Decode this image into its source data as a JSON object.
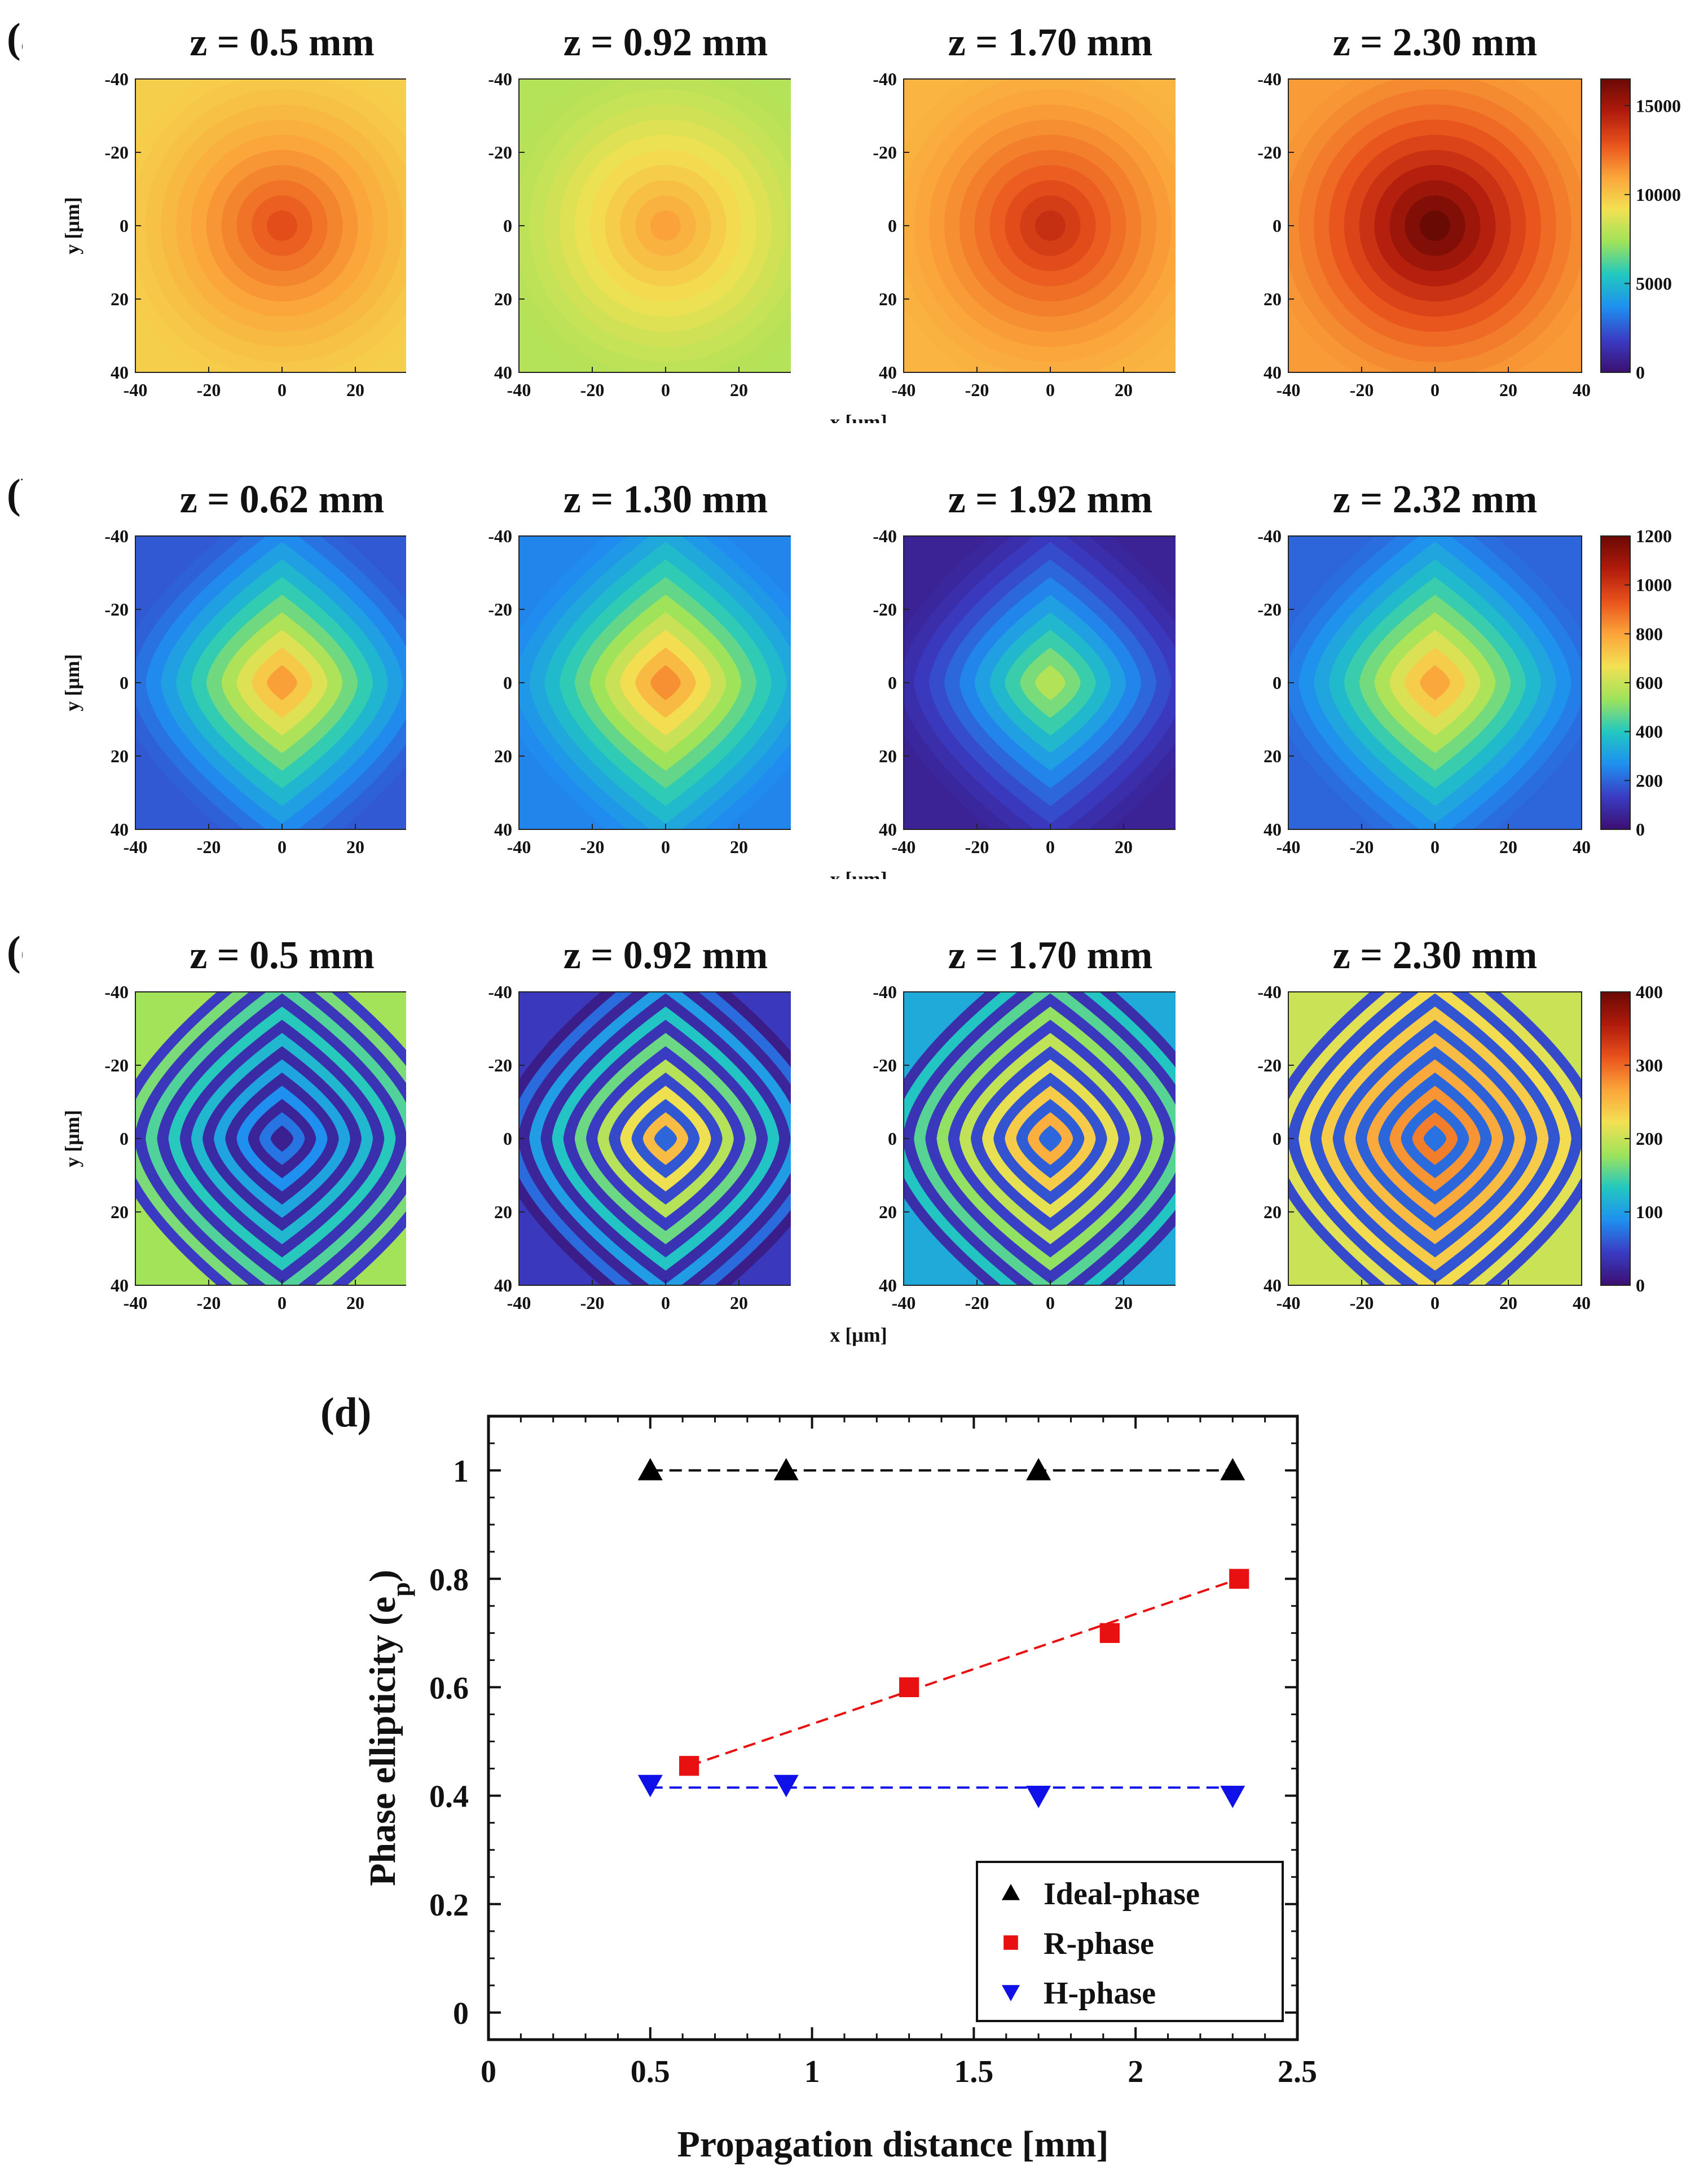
{
  "panel_labels": {
    "a": "(a)",
    "b": "(b)",
    "c": "(c)",
    "d": "(d)"
  },
  "colormap_stops": [
    "#3b0f70",
    "#3a3cc4",
    "#1f8ff0",
    "#22c8c0",
    "#9ee35a",
    "#f3e052",
    "#fba43a",
    "#e8521c",
    "#b01a0c",
    "#6a0a04"
  ],
  "chart_data": [
    {
      "type": "heatmap",
      "panel": "(a)",
      "x_label": "x [μm]",
      "y_label": "y [μm]",
      "xlim": [
        -40,
        40
      ],
      "ylim": [
        -40,
        40
      ],
      "xticks": [
        "-40",
        "-20",
        "0",
        "20",
        "40"
      ],
      "yticks": [
        "-40",
        "-20",
        "0",
        "20",
        "40"
      ],
      "colorbar": {
        "range": [
          0,
          16500
        ],
        "ticks": [
          "0",
          "5000",
          "10000",
          "15000"
        ]
      },
      "maps": [
        {
          "title": "z = 0.5 mm",
          "pattern": "smooth",
          "center": 13500,
          "edge": 9700,
          "rings": 6
        },
        {
          "title": "z = 0.92 mm",
          "pattern": "smooth",
          "center": 11500,
          "edge": 7800,
          "rings": 6
        },
        {
          "title": "z = 1.70 mm",
          "pattern": "smooth",
          "center": 14500,
          "edge": 10500,
          "rings": 6
        },
        {
          "title": "z = 2.30 mm",
          "pattern": "smooth",
          "center": 17500,
          "edge": 11200,
          "rings": 6
        }
      ]
    },
    {
      "type": "heatmap",
      "panel": "(b)",
      "x_label": "x [μm]",
      "y_label": "y [μm]",
      "xlim": [
        -40,
        40
      ],
      "ylim": [
        -40,
        40
      ],
      "xticks": [
        "-40",
        "-20",
        "0",
        "20",
        "40"
      ],
      "yticks": [
        "-40",
        "-20",
        "0",
        "20",
        "40"
      ],
      "colorbar": {
        "range": [
          0,
          1200
        ],
        "ticks": [
          "0",
          "200",
          "400",
          "600",
          "800",
          "1000",
          "1200"
        ]
      },
      "maps": [
        {
          "title": "z = 0.62 mm",
          "pattern": "diamond",
          "center": 900,
          "edge": 180,
          "rings": 4
        },
        {
          "title": "z = 1.30 mm",
          "pattern": "diamond",
          "center": 920,
          "edge": 250,
          "rings": 5
        },
        {
          "title": "z = 1.92 mm",
          "pattern": "diamond",
          "center": 640,
          "edge": 60,
          "rings": 5
        },
        {
          "title": "z = 2.32 mm",
          "pattern": "diamond",
          "center": 880,
          "edge": 200,
          "rings": 5
        }
      ]
    },
    {
      "type": "heatmap",
      "panel": "(c)",
      "x_label": "x [μm]",
      "y_label": "y [μm]",
      "xlim": [
        -40,
        40
      ],
      "ylim": [
        -40,
        40
      ],
      "xticks": [
        "-40",
        "-20",
        "0",
        "20",
        "40"
      ],
      "yticks": [
        "-40",
        "-20",
        "0",
        "20",
        "40"
      ],
      "colorbar": {
        "range": [
          0,
          400
        ],
        "ticks": [
          "0",
          "100",
          "200",
          "300",
          "400"
        ]
      },
      "maps": [
        {
          "title": "z = 0.5 mm",
          "pattern": "fringes",
          "center": 60,
          "edge": 180,
          "rings": 6
        },
        {
          "title": "z = 0.92 mm",
          "pattern": "fringes",
          "center": 280,
          "edge": 40,
          "rings": 5
        },
        {
          "title": "z = 1.70 mm",
          "pattern": "fringes",
          "center": 280,
          "edge": 110,
          "rings": 5
        },
        {
          "title": "z = 2.30 mm",
          "pattern": "fringes",
          "center": 300,
          "edge": 200,
          "rings": 5
        }
      ]
    },
    {
      "type": "scatter",
      "panel": "(d)",
      "xlabel": "Propagation distance [mm]",
      "ylabel": "Phase ellipticity (e",
      "ylabel_sub": "p",
      "ylabel_end": ")",
      "xlim": [
        0,
        2.5
      ],
      "ylim": [
        -0.05,
        1.1
      ],
      "xticks": [
        0,
        0.5,
        1,
        1.5,
        2,
        2.5
      ],
      "xtick_labels": [
        "0",
        "0.5",
        "1",
        "1.5",
        "2",
        "2.5"
      ],
      "yticks": [
        0,
        0.2,
        0.4,
        0.6,
        0.8,
        1
      ],
      "ytick_labels": [
        "0",
        "0.2",
        "0.4",
        "0.6",
        "0.8",
        "1"
      ],
      "legend_position": "bottom-right",
      "series": [
        {
          "name": "Ideal-phase",
          "marker": "triangle-up",
          "color": "#000000",
          "x": [
            0.5,
            0.92,
            1.7,
            2.3
          ],
          "y": [
            1.0,
            1.0,
            1.0,
            1.0
          ],
          "fit": {
            "x": [
              0.5,
              2.3
            ],
            "y": [
              1.0,
              1.0
            ]
          }
        },
        {
          "name": "R-phase",
          "marker": "square",
          "color": "#e81010",
          "x": [
            0.62,
            1.3,
            1.92,
            2.32
          ],
          "y": [
            0.455,
            0.6,
            0.7,
            0.8
          ],
          "fit": {
            "x": [
              0.62,
              2.32
            ],
            "y": [
              0.455,
              0.8
            ]
          }
        },
        {
          "name": "H-phase",
          "marker": "triangle-down",
          "color": "#1010e8",
          "x": [
            0.5,
            0.92,
            1.7,
            2.3
          ],
          "y": [
            0.42,
            0.42,
            0.4,
            0.4
          ],
          "fit": {
            "x": [
              0.5,
              2.3
            ],
            "y": [
              0.415,
              0.415
            ]
          }
        }
      ]
    }
  ]
}
